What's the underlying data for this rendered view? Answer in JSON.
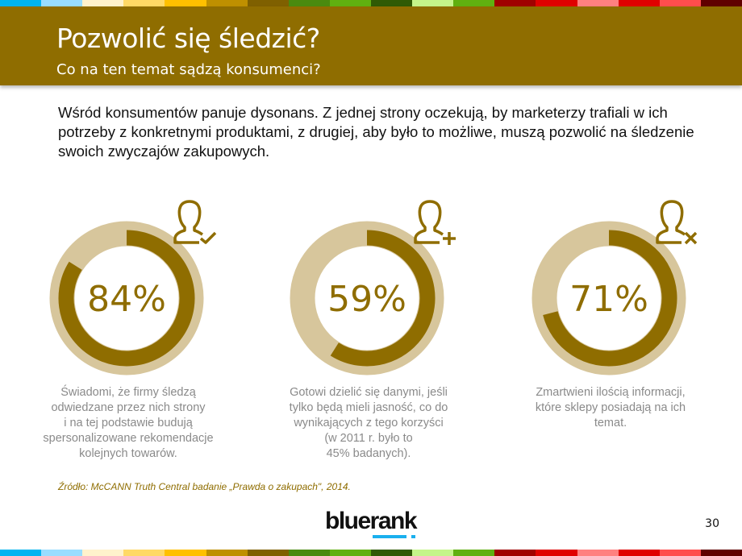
{
  "stripe_colors": [
    "#00b4f0",
    "#99ddff",
    "#fff2cc",
    "#ffd966",
    "#ffc000",
    "#bf9000",
    "#7f6000",
    "#4a8a0f",
    "#60b010",
    "#2f5a05",
    "#c5f58a",
    "#60b010",
    "#a00000",
    "#e00000",
    "#ff8080",
    "#e00000",
    "#ff4d4d",
    "#600000"
  ],
  "header": {
    "title": "Pozwolić się śledzić?",
    "subtitle": "Co na ten temat sądzą konsumenci?"
  },
  "intro": "Wśród konsumentów panuje dysonans. Z jednej strony oczekują, by marketerzy trafiali w ich potrzeby z konkretnymi produktami, z drugiej, aby było to możliwe, muszą pozwolić na śledzenie swoich zwyczajów zakupowych.",
  "stats": [
    {
      "label": "84%",
      "value": 84,
      "icon": "user-check-icon",
      "lines": [
        "Świadomi, że firmy śledzą",
        "odwiedzane przez nich strony",
        "i na tej podstawie budują",
        "spersonalizowane rekomendacje",
        "kolejnych towarów."
      ]
    },
    {
      "label": "59%",
      "value": 59,
      "icon": "user-plus-icon",
      "lines": [
        "Gotowi dzielić się danymi, jeśli",
        "tylko będą mieli jasność, co do",
        "wynikających z tego korzyści",
        "(w 2011 r. było to",
        "45% badanych)."
      ]
    },
    {
      "label": "71%",
      "value": 71,
      "icon": "user-x-icon",
      "lines": [
        "Zmartwieni ilością informacji,",
        "które sklepy posiadają na ich",
        "temat."
      ]
    }
  ],
  "source": "Źródło: McCANN Truth Central badanie „Prawda o zakupach\", 2014.",
  "logo": "bluerank",
  "page_number": "30",
  "colors": {
    "brand": "#8f6d00",
    "ring_light": "#d7c69c"
  }
}
